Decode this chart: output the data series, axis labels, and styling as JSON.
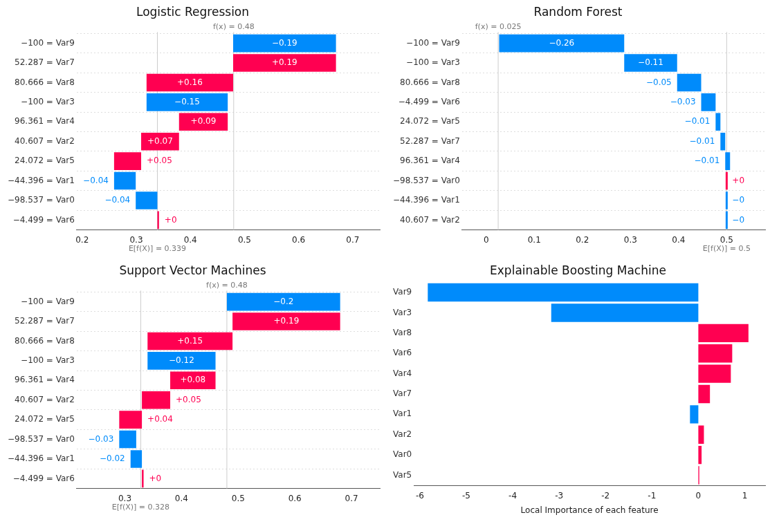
{
  "chart_data": [
    {
      "type": "bar",
      "orientation": "horizontal",
      "title": "Logistic Regression",
      "grid": "y",
      "legend": false,
      "categories": [
        "−100 = Var9",
        "52.287 = Var7",
        "80.666 = Var8",
        "−100 = Var3",
        "96.361 = Var4",
        "40.607 = Var2",
        "24.072 = Var5",
        "−44.396 = Var1",
        "−98.537 = Var0",
        "−4.499 = Var6"
      ],
      "values": [
        -0.19,
        0.19,
        0.16,
        -0.15,
        0.09,
        0.07,
        0.05,
        -0.04,
        -0.04,
        0.003
      ],
      "base": [
        0.669,
        0.479,
        0.319,
        0.469,
        0.379,
        0.309,
        0.259,
        0.299,
        0.339,
        0.339
      ],
      "colors": [
        "#008bfb",
        "#ff0051",
        "#ff0051",
        "#008bfb",
        "#ff0051",
        "#ff0051",
        "#ff0051",
        "#008bfb",
        "#008bfb",
        "#ff0051"
      ],
      "value_labels": [
        "−0.19",
        "+0.19",
        "+0.16",
        "−0.15",
        "+0.09",
        "+0.07",
        "+0.05",
        "−0.04",
        "−0.04",
        "+0"
      ],
      "xlim": [
        0.19,
        0.75
      ],
      "xticks": [
        0.2,
        0.3,
        0.4,
        0.5,
        0.6,
        0.7
      ],
      "ref_lines": [
        {
          "axis": "x",
          "value": 0.48,
          "label": "f(x) = 0.48",
          "color": "#cccccc"
        },
        {
          "axis": "x",
          "value": 0.339,
          "label": "E[f(X)] = 0.339",
          "color": "#cccccc"
        }
      ]
    },
    {
      "type": "bar",
      "orientation": "horizontal",
      "title": "Random Forest",
      "grid": "y",
      "legend": false,
      "categories": [
        "−100 = Var9",
        "−100 = Var3",
        "80.666 = Var8",
        "−4.499 = Var6",
        "24.072 = Var5",
        "52.287 = Var7",
        "96.361 = Var4",
        "−98.537 = Var0",
        "−44.396 = Var1",
        "40.607 = Var2"
      ],
      "values": [
        -0.26,
        -0.11,
        -0.05,
        -0.03,
        -0.01,
        -0.01,
        -0.01,
        0,
        0,
        0
      ],
      "base": [
        0.287,
        0.397,
        0.447,
        0.477,
        0.487,
        0.497,
        0.507,
        0.5,
        0.5,
        0.5
      ],
      "colors": [
        "#008bfb",
        "#008bfb",
        "#008bfb",
        "#008bfb",
        "#008bfb",
        "#008bfb",
        "#008bfb",
        "#ff0051",
        "#008bfb",
        "#008bfb"
      ],
      "value_labels": [
        "−0.26",
        "−0.11",
        "−0.05",
        "−0.03",
        "−0.01",
        "−0.01",
        "−0.01",
        "+0",
        "−0",
        "−0"
      ],
      "xlim": [
        -0.05,
        0.58
      ],
      "xticks": [
        0,
        0.1,
        0.2,
        0.3,
        0.4,
        0.5
      ],
      "ref_lines": [
        {
          "axis": "x",
          "value": 0.025,
          "label": "f(x) = 0.025",
          "color": "#cccccc"
        },
        {
          "axis": "x",
          "value": 0.5,
          "label": "E[f(X)] = 0.5",
          "color": "#cccccc"
        }
      ]
    },
    {
      "type": "bar",
      "orientation": "horizontal",
      "title": "Support Vector Machines",
      "grid": "y",
      "legend": false,
      "categories": [
        "−100 = Var9",
        "52.287 = Var7",
        "80.666 = Var8",
        "−100 = Var3",
        "96.361 = Var4",
        "40.607 = Var2",
        "24.072 = Var5",
        "−98.537 = Var0",
        "−44.396 = Var1",
        "−4.499 = Var6"
      ],
      "values": [
        -0.2,
        0.19,
        0.15,
        -0.12,
        0.08,
        0.05,
        0.04,
        -0.03,
        -0.02,
        0.003
      ],
      "base": [
        0.68,
        0.49,
        0.34,
        0.46,
        0.38,
        0.33,
        0.29,
        0.32,
        0.33,
        0.33
      ],
      "colors": [
        "#008bfb",
        "#ff0051",
        "#ff0051",
        "#008bfb",
        "#ff0051",
        "#ff0051",
        "#ff0051",
        "#008bfb",
        "#008bfb",
        "#ff0051"
      ],
      "value_labels": [
        "−0.2",
        "+0.19",
        "+0.15",
        "−0.12",
        "+0.08",
        "+0.05",
        "+0.04",
        "−0.03",
        "−0.02",
        "+0"
      ],
      "xlim": [
        0.215,
        0.75
      ],
      "xticks": [
        0.3,
        0.4,
        0.5,
        0.6,
        0.7
      ],
      "ref_lines": [
        {
          "axis": "x",
          "value": 0.48,
          "label": "f(x) = 0.48",
          "color": "#cccccc"
        },
        {
          "axis": "x",
          "value": 0.328,
          "label": "E[f(X)] = 0.328",
          "color": "#cccccc"
        }
      ]
    },
    {
      "type": "bar",
      "orientation": "horizontal",
      "title": "Explainable Boosting Machine",
      "legend": false,
      "xlabel": "Local Importance of each feature",
      "categories": [
        "Var9",
        "Var3",
        "Var8",
        "Var6",
        "Var4",
        "Var7",
        "Var1",
        "Var2",
        "Var0",
        "Var5"
      ],
      "values": [
        -5.83,
        -3.17,
        1.08,
        0.73,
        0.7,
        0.25,
        -0.18,
        0.12,
        0.07,
        0.02
      ],
      "colors": [
        "#008bfb",
        "#008bfb",
        "#ff0051",
        "#ff0051",
        "#ff0051",
        "#ff0051",
        "#008bfb",
        "#ff0051",
        "#ff0051",
        "#ff0051"
      ],
      "xlim": [
        -6.13,
        1.44
      ],
      "xticks": [
        -6,
        -5,
        -4,
        -3,
        -2,
        -1,
        0,
        1
      ]
    }
  ]
}
